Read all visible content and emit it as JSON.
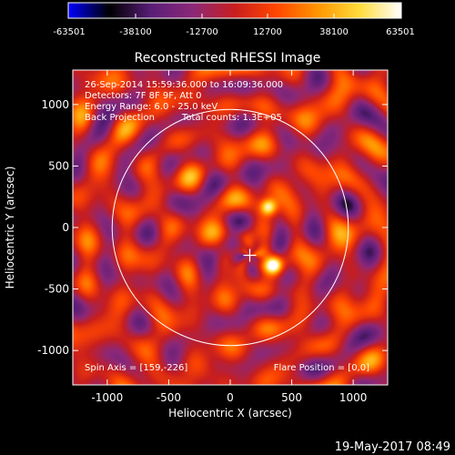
{
  "colorbar": {
    "tick_labels": [
      "-63501",
      "-38100",
      "-12700",
      "12700",
      "38100",
      "63501"
    ],
    "min": -63501,
    "max": 63501,
    "colors": [
      "#0000ff",
      "#000000",
      "#5a1e78",
      "#8c2878",
      "#c81e1e",
      "#ff4600",
      "#ff9600",
      "#ffdc3c",
      "#ffffff"
    ]
  },
  "chart_data": {
    "type": "heatmap",
    "title": "Reconstructed RHESSI Image",
    "xlabel": "Heliocentric X (arcsec)",
    "ylabel": "Heliocentric Y (arcsec)",
    "xlim": [
      -1280,
      1280
    ],
    "ylim": [
      -1280,
      1280
    ],
    "x_ticks": [
      -1000,
      -500,
      0,
      500,
      1000
    ],
    "y_ticks": [
      -1000,
      -500,
      0,
      500,
      1000
    ],
    "x_tick_labels": [
      "-1000",
      "-500",
      "0",
      "500",
      "1000"
    ],
    "y_tick_labels": [
      "-1000",
      "-500",
      "0",
      "500",
      "1000"
    ],
    "solar_limb_radius": 960,
    "sources": [
      {
        "x": 310,
        "y": 165,
        "value": 63501
      },
      {
        "x": 355,
        "y": -305,
        "value": 58000
      }
    ],
    "spin_axis": [
      159,
      -226
    ],
    "annotations": {
      "time_range": "26-Sep-2014 15:59:36.000 to 16:09:36.000",
      "detectors": "Detectors: 7F 8F 9F, Att 0",
      "energy": "Energy Range: 6.0 - 25.0 keV",
      "method": "Back Projection",
      "counts": "Total counts: 1.3E+05",
      "spin_axis": "Spin Axis = [159,-226]",
      "flare_position": "Flare Position = [0,0]"
    }
  },
  "footer": {
    "date": "19-May-2017 08:49"
  }
}
